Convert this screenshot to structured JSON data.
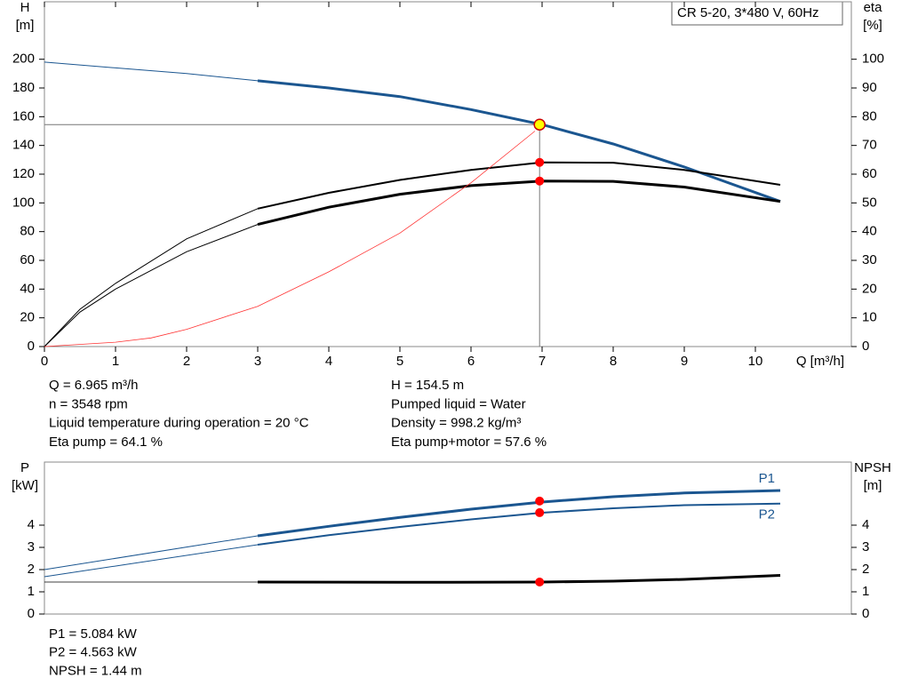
{
  "model_label": "CR 5-20, 3*480 V, 60Hz",
  "chart_data": [
    {
      "type": "line",
      "xlabel": "Q [m³/h]",
      "ylabel": [
        "H",
        "[m]"
      ],
      "y2label": [
        "eta",
        "[%]"
      ],
      "xlim": [
        0,
        11.35
      ],
      "xticks": [
        0,
        1,
        2,
        3,
        4,
        5,
        6,
        7,
        8,
        9,
        10
      ],
      "ylim": [
        0,
        240
      ],
      "yticks": [
        0,
        20,
        40,
        60,
        80,
        100,
        120,
        140,
        160,
        180,
        200
      ],
      "y2lim": [
        0,
        120
      ],
      "y2ticks": [
        0,
        10,
        20,
        30,
        40,
        50,
        60,
        70,
        80,
        90,
        100
      ],
      "series": [
        {
          "color": "#1b5690",
          "linewidth": 1,
          "x": [
            0,
            1,
            2,
            3
          ],
          "values": [
            198,
            194,
            190,
            185
          ]
        },
        {
          "color": "#1b5690",
          "linewidth": 3,
          "x": [
            3,
            4,
            5,
            6,
            7,
            8,
            9,
            10.35
          ],
          "values": [
            185,
            180,
            174,
            165,
            154.5,
            141,
            125,
            101
          ]
        },
        {
          "color": "#000000",
          "linewidth": 1,
          "axis": "y2",
          "x": [
            0,
            0.5,
            1,
            2,
            3
          ],
          "values": [
            0,
            13,
            22,
            37.5,
            48
          ]
        },
        {
          "color": "#000000",
          "linewidth": 2,
          "axis": "y2",
          "x": [
            3,
            4,
            5,
            6,
            7,
            8,
            9,
            10.35
          ],
          "values": [
            48,
            53.5,
            58,
            61.5,
            64.1,
            64,
            61.5,
            56.3
          ]
        },
        {
          "color": "#000000",
          "linewidth": 1,
          "axis": "y2",
          "x": [
            0,
            0.5,
            1,
            2,
            3
          ],
          "values": [
            0,
            12,
            20,
            33,
            42.5
          ]
        },
        {
          "color": "#000000",
          "linewidth": 3,
          "axis": "y2",
          "x": [
            3,
            4,
            5,
            6,
            7,
            8,
            9,
            10.35
          ],
          "values": [
            42.5,
            48.5,
            53,
            56,
            57.6,
            57.5,
            55.5,
            50.5
          ]
        },
        {
          "color": "#ff3333",
          "linewidth": 0.8,
          "x": [
            0,
            1,
            1.5,
            2,
            3,
            4,
            5,
            6,
            6.9
          ],
          "values": [
            0,
            3,
            6,
            12,
            28,
            52,
            79,
            114,
            150
          ]
        }
      ],
      "points": [
        {
          "x": 6.965,
          "values": 154.5,
          "color": "#ffff00",
          "guide": true
        },
        {
          "x": 6.965,
          "values": 64.1,
          "color": "#ff0000",
          "axis": "y2"
        },
        {
          "x": 6.965,
          "values": 57.6,
          "color": "#ff0000",
          "axis": "y2"
        }
      ]
    },
    {
      "type": "line",
      "ylabel": [
        "P",
        "[kW]"
      ],
      "y2label": [
        "NPSH",
        "[m]"
      ],
      "xlim": [
        0,
        11.35
      ],
      "ylim": [
        0,
        6.84
      ],
      "yticks": [
        0,
        1,
        2,
        3,
        4
      ],
      "y2lim": [
        0,
        6.84
      ],
      "y2ticks": [
        0,
        1,
        2,
        3,
        4
      ],
      "series": [
        {
          "color": "#1b5690",
          "linewidth": 1,
          "x": [
            0,
            3
          ],
          "values": [
            2.0,
            3.52
          ]
        },
        {
          "name": "P1",
          "color": "#1b5690",
          "linewidth": 3,
          "x": [
            3,
            4,
            5,
            6,
            7,
            8,
            9,
            10.35
          ],
          "values": [
            3.52,
            3.95,
            4.35,
            4.72,
            5.04,
            5.28,
            5.45,
            5.56
          ]
        },
        {
          "color": "#1b5690",
          "linewidth": 1,
          "x": [
            0,
            3
          ],
          "values": [
            1.68,
            3.12
          ]
        },
        {
          "name": "P2",
          "color": "#1b5690",
          "linewidth": 2,
          "x": [
            3,
            4,
            5,
            6,
            7,
            8,
            9,
            10.35
          ],
          "values": [
            3.12,
            3.55,
            3.92,
            4.26,
            4.56,
            4.76,
            4.9,
            4.97
          ]
        },
        {
          "color": "#000000",
          "linewidth": 0.8,
          "axis": "y2",
          "x": [
            0,
            3
          ],
          "values": [
            1.44,
            1.44
          ]
        },
        {
          "color": "#000000",
          "linewidth": 3,
          "axis": "y2",
          "x": [
            3,
            5,
            7,
            8,
            9,
            10.35
          ],
          "values": [
            1.44,
            1.43,
            1.44,
            1.48,
            1.56,
            1.74
          ]
        }
      ],
      "points": [
        {
          "x": 6.965,
          "values": 5.084,
          "color": "#ff0000"
        },
        {
          "x": 6.965,
          "values": 4.563,
          "color": "#ff0000"
        },
        {
          "x": 6.965,
          "values": 1.44,
          "color": "#ff0000",
          "axis": "y2"
        }
      ]
    }
  ],
  "operating_point": {
    "left": [
      "Q = 6.965 m³/h",
      "n = 3548 rpm",
      "Liquid temperature during operation = 20 °C",
      "Eta pump = 64.1 %"
    ],
    "right": [
      "H = 154.5 m",
      "Pumped liquid = Water",
      "Density = 998.2 kg/m³",
      "Eta pump+motor = 57.6 %"
    ]
  },
  "power_point": [
    "P1 = 5.084 kW",
    "P2 = 4.563 kW",
    "NPSH = 1.44 m"
  ]
}
